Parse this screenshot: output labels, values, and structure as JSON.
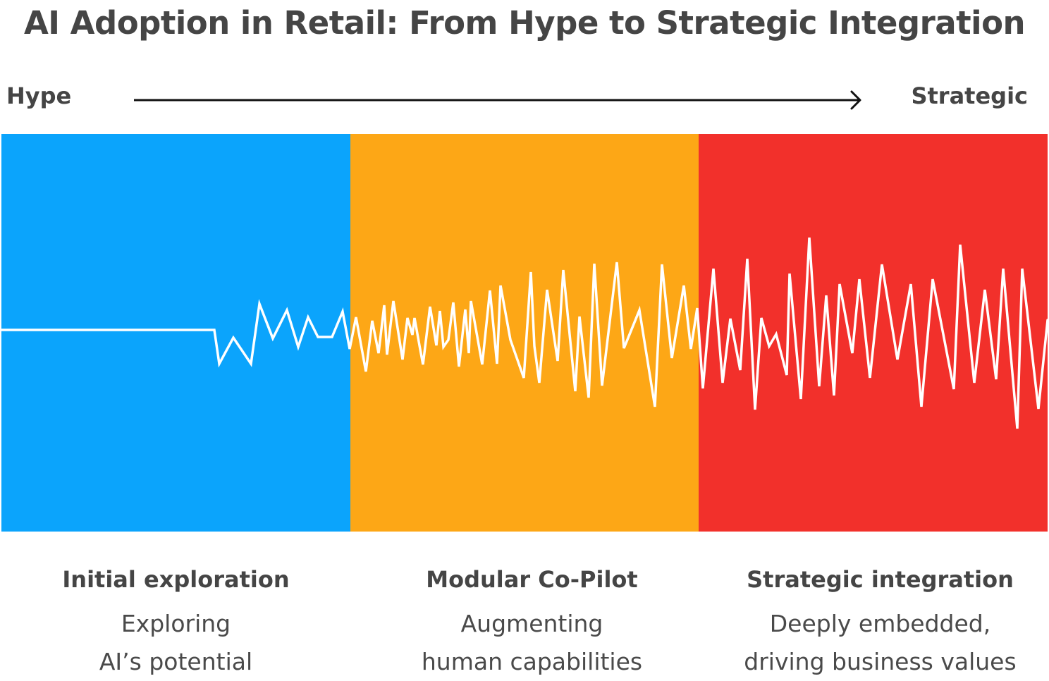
{
  "title": "AI Adoption in Retail: From Hype to Strategic Integration",
  "axis": {
    "start_label": "Hype",
    "end_label": "Strategic"
  },
  "stages": [
    {
      "title": "Initial exploration",
      "lines": [
        "Exploring",
        "AI’s potential"
      ],
      "color": "#0ba4fc"
    },
    {
      "title": "Modular Co-Pilot",
      "lines": [
        "Augmenting",
        "human capabilities"
      ],
      "color": "#fda716"
    },
    {
      "title": "Strategic integration",
      "lines": [
        "Deeply embedded,",
        "driving business values"
      ],
      "color": "#f2302b"
    }
  ],
  "colors": {
    "waveform": "#ffffff",
    "arrow": "#111111",
    "text": "#454545"
  }
}
